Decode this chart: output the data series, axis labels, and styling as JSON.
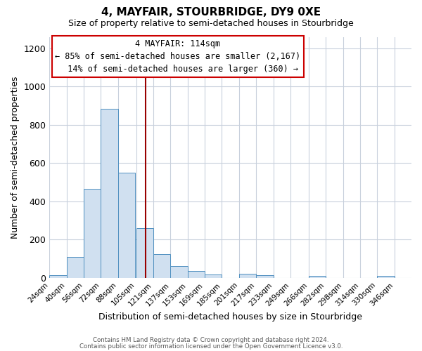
{
  "title": "4, MAYFAIR, STOURBRIDGE, DY9 0XE",
  "subtitle": "Size of property relative to semi-detached houses in Stourbridge",
  "xlabel": "Distribution of semi-detached houses by size in Stourbridge",
  "ylabel": "Number of semi-detached properties",
  "bar_left_edges": [
    24,
    40,
    56,
    72,
    88,
    105,
    121,
    137,
    153,
    169,
    185,
    201,
    217,
    233,
    249,
    266,
    282,
    298,
    314,
    330
  ],
  "bar_heights": [
    15,
    110,
    465,
    885,
    550,
    260,
    125,
    60,
    35,
    18,
    0,
    20,
    15,
    0,
    0,
    10,
    0,
    0,
    0,
    10
  ],
  "bar_color": "#d0e0f0",
  "bar_edge_color": "#5090c0",
  "tick_labels": [
    "24sqm",
    "40sqm",
    "56sqm",
    "72sqm",
    "88sqm",
    "105sqm",
    "121sqm",
    "137sqm",
    "153sqm",
    "169sqm",
    "185sqm",
    "201sqm",
    "217sqm",
    "233sqm",
    "249sqm",
    "266sqm",
    "282sqm",
    "298sqm",
    "314sqm",
    "330sqm",
    "346sqm"
  ],
  "ylim": [
    0,
    1260
  ],
  "yticks": [
    0,
    200,
    400,
    600,
    800,
    1000,
    1200
  ],
  "xlim_left": 24,
  "xlim_right": 362,
  "property_size": 114,
  "vline_color": "#990000",
  "annotation_title": "4 MAYFAIR: 114sqm",
  "annotation_line1": "← 85% of semi-detached houses are smaller (2,167)",
  "annotation_line2": "  14% of semi-detached houses are larger (360) →",
  "annotation_box_color": "#ffffff",
  "annotation_box_edge_color": "#cc0000",
  "footer_line1": "Contains HM Land Registry data © Crown copyright and database right 2024.",
  "footer_line2": "Contains public sector information licensed under the Open Government Licence v3.0.",
  "background_color": "#ffffff",
  "grid_color": "#c8d0dc",
  "title_fontsize": 11,
  "subtitle_fontsize": 9
}
